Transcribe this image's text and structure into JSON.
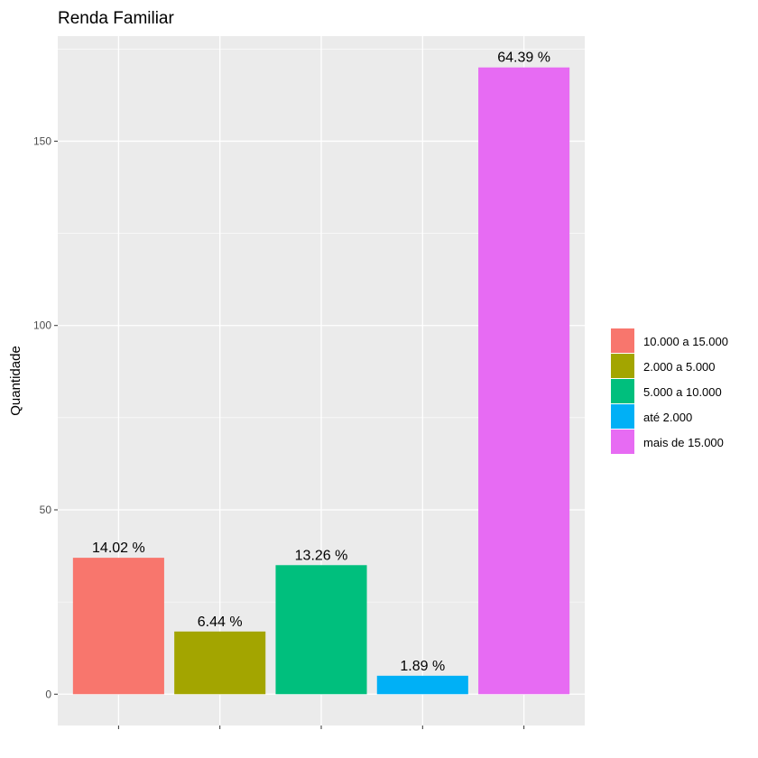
{
  "chart_data": {
    "type": "bar",
    "title": "Renda Familiar",
    "xlabel": "",
    "ylabel": "Quantidade",
    "categories": [
      "10.000 a 15.000",
      "2.000 a 5.000",
      "5.000 a 10.000",
      "até 2.000",
      "mais de 15.000"
    ],
    "values": [
      37,
      17,
      35,
      5,
      170
    ],
    "data_labels": [
      "14.02 %",
      "6.44 %",
      "13.26 %",
      "1.89 %",
      "64.39 %"
    ],
    "colors": [
      "#F8766D",
      "#A3A500",
      "#00BF7D",
      "#00B0F6",
      "#E76BF3"
    ],
    "ylim": [
      -8.5,
      178.5
    ],
    "yticks": [
      0,
      50,
      100,
      150
    ],
    "ytick_labels": [
      "0",
      "50",
      "100",
      "150"
    ],
    "x_tick_labels_shown": false,
    "grid": true,
    "panel_background": "#EBEBEB",
    "legend": {
      "placement": "right",
      "entries": [
        "10.000 a 15.000",
        "2.000 a 5.000",
        "5.000 a 10.000",
        "até 2.000",
        "mais de 15.000"
      ]
    }
  }
}
